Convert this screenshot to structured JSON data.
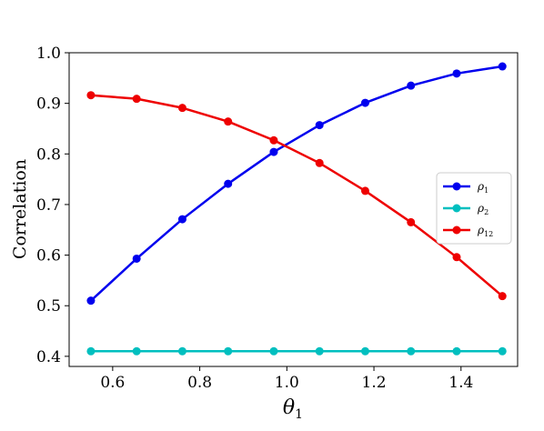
{
  "chart_data": {
    "type": "line",
    "title": "",
    "xlabel": "θ",
    "xlabel_sub": "1",
    "ylabel": "Correlation",
    "xlim": [
      0.5,
      1.53
    ],
    "ylim": [
      0.38,
      1.0
    ],
    "xticks": [
      0.6,
      0.8,
      1.0,
      1.2,
      1.4
    ],
    "xtick_labels": [
      "0.6",
      "0.8",
      "1.0",
      "1.2",
      "1.4"
    ],
    "yticks": [
      0.4,
      0.5,
      0.6,
      0.7,
      0.8,
      0.9,
      1.0
    ],
    "ytick_labels": [
      "0.4",
      "0.5",
      "0.6",
      "0.7",
      "0.8",
      "0.9",
      "1.0"
    ],
    "grid": false,
    "legend_position": "center-right",
    "x": [
      0.55,
      0.655,
      0.76,
      0.865,
      0.97,
      1.075,
      1.18,
      1.285,
      1.39,
      1.495
    ],
    "series": [
      {
        "name": "ρ",
        "name_sub": "1",
        "color": "#0000ee",
        "values": [
          0.51,
          0.593,
          0.671,
          0.741,
          0.804,
          0.857,
          0.901,
          0.935,
          0.959,
          0.973
        ]
      },
      {
        "name": "ρ",
        "name_sub": "2",
        "color": "#00bfbf",
        "values": [
          0.41,
          0.41,
          0.41,
          0.41,
          0.41,
          0.41,
          0.41,
          0.41,
          0.41,
          0.41
        ]
      },
      {
        "name": "ρ",
        "name_sub": "12",
        "color": "#ee0000",
        "values": [
          0.916,
          0.909,
          0.891,
          0.864,
          0.827,
          0.782,
          0.727,
          0.665,
          0.596,
          0.519
        ]
      }
    ]
  }
}
